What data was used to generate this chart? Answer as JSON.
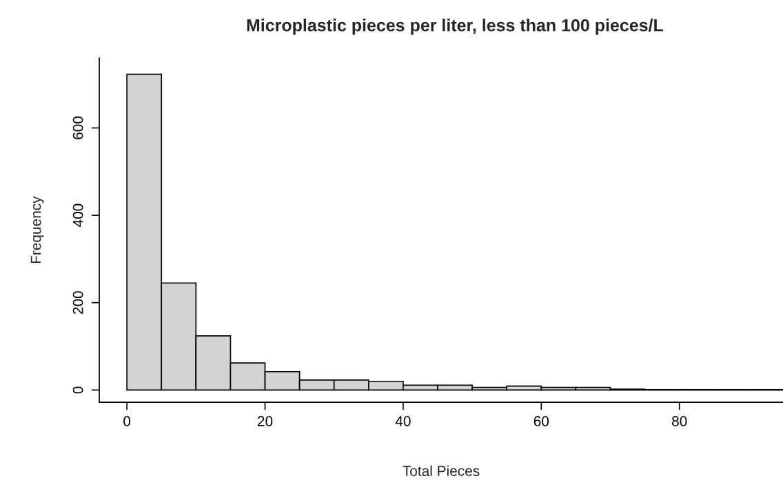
{
  "chart_data": {
    "type": "histogram",
    "title": "Microplastic pieces per liter, less than 100 pieces/L",
    "xlabel": "Total Pieces",
    "ylabel": "Frequency",
    "bins": [
      0,
      5,
      10,
      15,
      20,
      25,
      30,
      35,
      40,
      45,
      50,
      55,
      60,
      65,
      70,
      75,
      80,
      85,
      90,
      95
    ],
    "values": [
      723,
      245,
      124,
      62,
      42,
      23,
      23,
      20,
      11,
      11,
      6,
      9,
      6,
      6,
      2,
      1,
      1,
      1,
      1
    ],
    "color": "#d3d3d3",
    "xlim": [
      -4,
      95
    ],
    "ylim": [
      -28,
      760
    ],
    "xticks": [
      0,
      20,
      40,
      60,
      80
    ],
    "yticks": [
      0,
      200,
      400,
      600
    ],
    "grid": false
  }
}
